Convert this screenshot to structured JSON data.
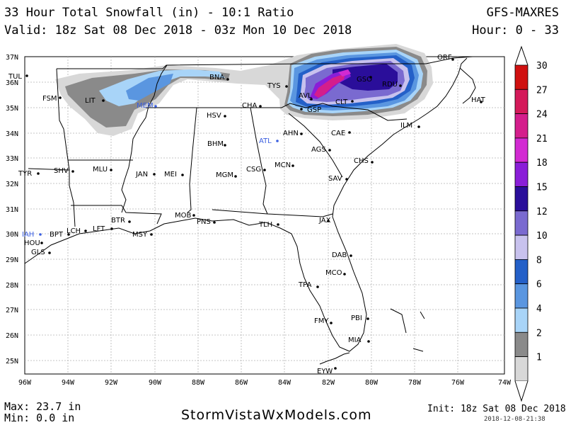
{
  "header": {
    "title": "33 Hour Total Snowfall (in) - 10:1 Ratio",
    "model": "GFS-MAXRES",
    "valid": "Valid: 18z Sat 08 Dec 2018 - 03z Mon 10 Dec 2018",
    "hours": "Hour: 0 - 33"
  },
  "axes": {
    "lat_labels": [
      "37N",
      "36N",
      "35N",
      "34N",
      "33N",
      "32N",
      "31N",
      "30N",
      "29N",
      "28N",
      "27N",
      "26N",
      "25N"
    ],
    "lon_labels": [
      "96W",
      "94W",
      "92W",
      "90W",
      "88W",
      "86W",
      "84W",
      "82W",
      "80W",
      "78W",
      "76W",
      "74W"
    ]
  },
  "colorbar": {
    "labels": [
      "30",
      "27",
      "24",
      "21",
      "18",
      "15",
      "12",
      "10",
      "8",
      "6",
      "4",
      "2",
      "1"
    ],
    "colors": [
      "#d01010",
      "#d41a5a",
      "#d41e8c",
      "#d22ad2",
      "#8a1ed8",
      "#2a0e9a",
      "#7a6ad0",
      "#c8c2ee",
      "#2460c8",
      "#5a96e0",
      "#a8d4f8",
      "#8a8a8a",
      "#d8d8d8"
    ]
  },
  "cities": [
    {
      "name": "TUL",
      "color": "#000000"
    },
    {
      "name": "FSM",
      "color": "#000000"
    },
    {
      "name": "LIT",
      "color": "#000000"
    },
    {
      "name": "MEM",
      "color": "#3a5ee0"
    },
    {
      "name": "BNA",
      "color": "#000000"
    },
    {
      "name": "TYS",
      "color": "#000000"
    },
    {
      "name": "CHA",
      "color": "#000000"
    },
    {
      "name": "HSV",
      "color": "#000000"
    },
    {
      "name": "AVL",
      "color": "#000000"
    },
    {
      "name": "GSO",
      "color": "#000000"
    },
    {
      "name": "RDU",
      "color": "#000000"
    },
    {
      "name": "ORF",
      "color": "#000000"
    },
    {
      "name": "HAT",
      "color": "#000000"
    },
    {
      "name": "CLT",
      "color": "#000000"
    },
    {
      "name": "GSP",
      "color": "#000000"
    },
    {
      "name": "AHN",
      "color": "#000000"
    },
    {
      "name": "ATL",
      "color": "#3a5ee0"
    },
    {
      "name": "CAE",
      "color": "#000000"
    },
    {
      "name": "ILM",
      "color": "#000000"
    },
    {
      "name": "BHM",
      "color": "#000000"
    },
    {
      "name": "AGS",
      "color": "#000000"
    },
    {
      "name": "CHS",
      "color": "#000000"
    },
    {
      "name": "TYR",
      "color": "#000000"
    },
    {
      "name": "SHV",
      "color": "#000000"
    },
    {
      "name": "MLU",
      "color": "#000000"
    },
    {
      "name": "JAN",
      "color": "#000000"
    },
    {
      "name": "MEI",
      "color": "#000000"
    },
    {
      "name": "MGM",
      "color": "#000000"
    },
    {
      "name": "CSG",
      "color": "#000000"
    },
    {
      "name": "MCN",
      "color": "#000000"
    },
    {
      "name": "SAV",
      "color": "#000000"
    },
    {
      "name": "BTR",
      "color": "#000000"
    },
    {
      "name": "MOB",
      "color": "#000000"
    },
    {
      "name": "PNS",
      "color": "#000000"
    },
    {
      "name": "TLH",
      "color": "#000000"
    },
    {
      "name": "JAX",
      "color": "#000000"
    },
    {
      "name": "IAH",
      "color": "#3a5ee0"
    },
    {
      "name": "BPT",
      "color": "#000000"
    },
    {
      "name": "LCH",
      "color": "#000000"
    },
    {
      "name": "LFT",
      "color": "#000000"
    },
    {
      "name": "MSY",
      "color": "#000000"
    },
    {
      "name": "HOU",
      "color": "#000000"
    },
    {
      "name": "GLS",
      "color": "#000000"
    },
    {
      "name": "DAB",
      "color": "#000000"
    },
    {
      "name": "MCO",
      "color": "#000000"
    },
    {
      "name": "TPA",
      "color": "#000000"
    },
    {
      "name": "PBI",
      "color": "#000000"
    },
    {
      "name": "FMY",
      "color": "#000000"
    },
    {
      "name": "MIA",
      "color": "#000000"
    },
    {
      "name": "EYW",
      "color": "#000000"
    }
  ],
  "footer": {
    "max": "Max: 23.7 in",
    "min": "Min: 0.0 in",
    "site": "StormVistaWxModels.com",
    "init": "Init: 18z Sat 08 Dec 2018",
    "stamp": "2018-12-08-21:38"
  }
}
